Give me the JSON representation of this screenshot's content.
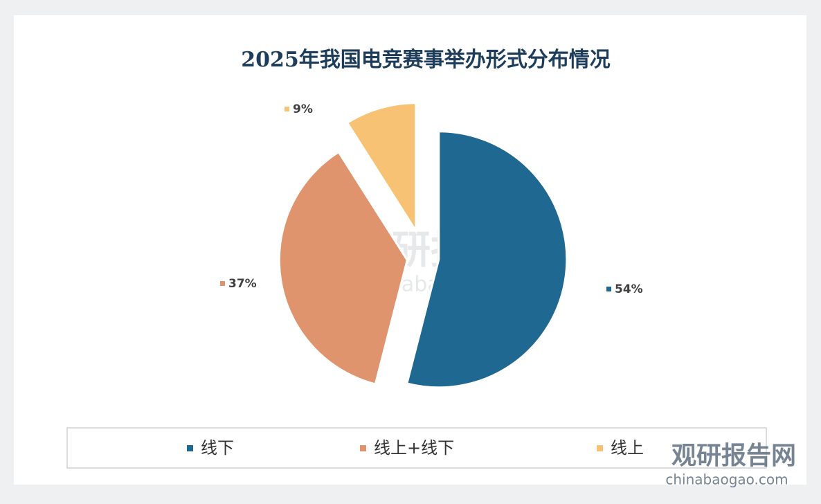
{
  "chart_data": {
    "type": "pie",
    "title": "2025年我国电竞赛事举办形式分布情况",
    "categories": [
      "线下",
      "线上+线下",
      "线上"
    ],
    "values": [
      54,
      37,
      9
    ],
    "value_labels": [
      "54%",
      "37%",
      "9%"
    ],
    "colors": [
      "#1f6891",
      "#e0946d",
      "#f8c275"
    ],
    "legend": "bottom",
    "watermark": [
      "观研报告网",
      "chinabaogao.com"
    ]
  }
}
